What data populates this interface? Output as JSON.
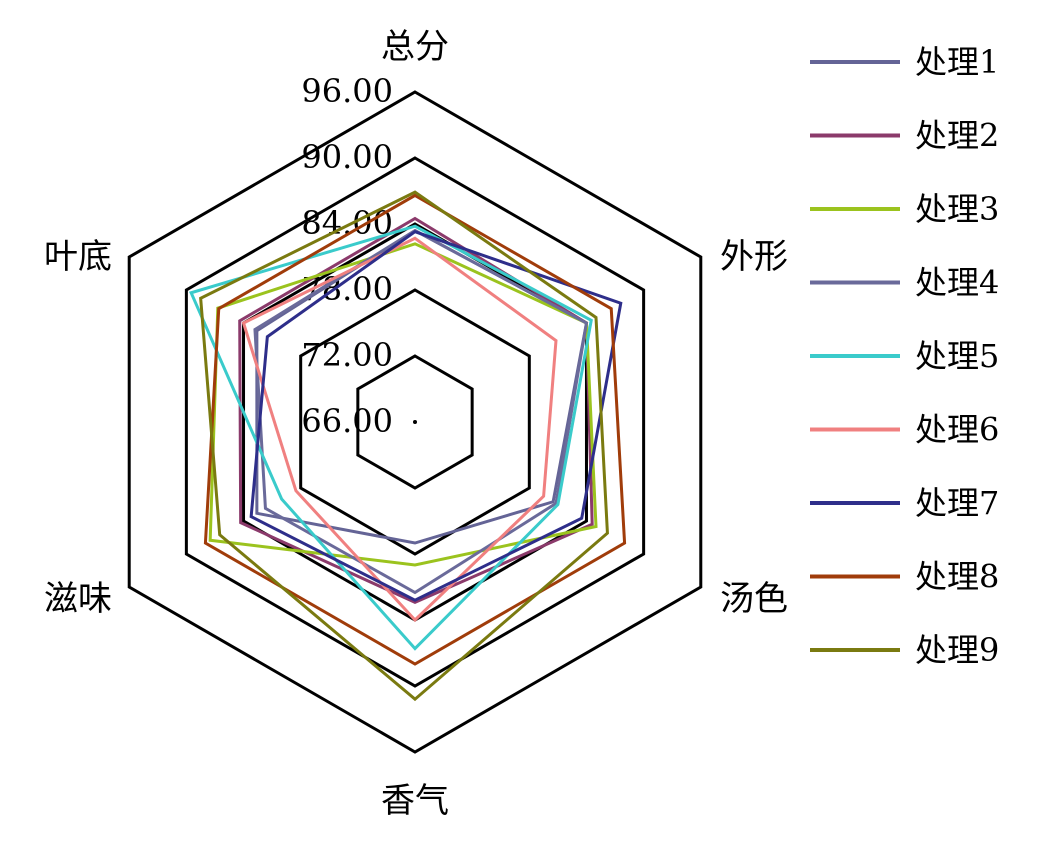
{
  "chart_data": {
    "type": "radar",
    "axes": [
      "总分",
      "外形",
      "汤色",
      "香气",
      "滋味",
      "叶底"
    ],
    "range": [
      66,
      96
    ],
    "ticks": [
      "66.00",
      "72.00",
      "78.00",
      "84.00",
      "90.00",
      "96.00"
    ],
    "tick_values": [
      66,
      72,
      78,
      84,
      90,
      96
    ],
    "series": [
      {
        "name": "处理1",
        "color": "#646496",
        "values": [
          83.4,
          84.0,
          80.5,
          77.0,
          82.6,
          82.6
        ]
      },
      {
        "name": "处理2",
        "color": "#8B3A6B",
        "values": [
          84.5,
          84.0,
          84.6,
          82.4,
          84.3,
          84.4
        ]
      },
      {
        "name": "处理3",
        "color": "#9BC31E",
        "values": [
          82.2,
          84.0,
          85.0,
          79.0,
          87.5,
          86.7
        ]
      },
      {
        "name": "处理4",
        "color": "#6A6A9A",
        "values": [
          83.4,
          84.0,
          80.8,
          81.5,
          81.7,
          82.8
        ]
      },
      {
        "name": "处理5",
        "color": "#3ACBCB",
        "values": [
          83.8,
          84.5,
          81.0,
          86.6,
          80.0,
          89.5
        ]
      },
      {
        "name": "处理6",
        "color": "#F08080",
        "values": [
          82.7,
          80.8,
          79.5,
          84.0,
          78.5,
          84.0
        ]
      },
      {
        "name": "处理7",
        "color": "#2E2E8A",
        "values": [
          83.3,
          87.6,
          83.5,
          82.2,
          83.2,
          81.5
        ]
      },
      {
        "name": "处理8",
        "color": "#A03C0A",
        "values": [
          86.6,
          86.6,
          88.0,
          88.0,
          88.0,
          86.6
        ]
      },
      {
        "name": "处理9",
        "color": "#7A7A10",
        "values": [
          86.9,
          85.0,
          86.2,
          91.2,
          86.5,
          88.5
        ]
      }
    ],
    "legend_position": "right",
    "grid": true
  }
}
